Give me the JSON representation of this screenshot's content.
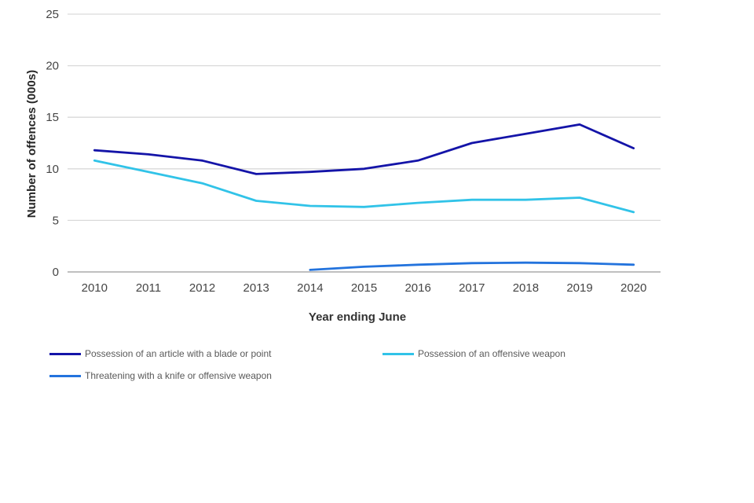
{
  "chart_data": {
    "type": "line",
    "title": "",
    "xlabel": "Year ending June",
    "ylabel": "Number of offences (000s)",
    "x": [
      2010,
      2011,
      2012,
      2013,
      2014,
      2015,
      2016,
      2017,
      2018,
      2019,
      2020
    ],
    "yticks": [
      0,
      5,
      10,
      15,
      20,
      25
    ],
    "ylim": [
      0,
      25
    ],
    "grid": "horizontal",
    "legend_position": "bottom",
    "series": [
      {
        "name": "Possession of an article with a blade or point",
        "color": "#1414a8",
        "values": [
          11.8,
          11.4,
          10.8,
          9.5,
          9.7,
          10.0,
          10.8,
          12.5,
          13.4,
          14.3,
          12.0
        ]
      },
      {
        "name": "Possession of an offensive weapon",
        "color": "#31c3e8",
        "values": [
          10.8,
          9.7,
          8.6,
          6.9,
          6.4,
          6.3,
          6.7,
          7.0,
          7.0,
          7.2,
          5.8
        ]
      },
      {
        "name": "Threatening with a knife or offensive weapon",
        "color": "#2373dd",
        "values": [
          null,
          null,
          null,
          null,
          0.2,
          0.5,
          0.7,
          0.85,
          0.9,
          0.85,
          0.7
        ]
      }
    ]
  },
  "colors": {
    "gridline": "#d9d9d9",
    "axis_line": "#bfbfbf",
    "tick_text": "#454545"
  }
}
